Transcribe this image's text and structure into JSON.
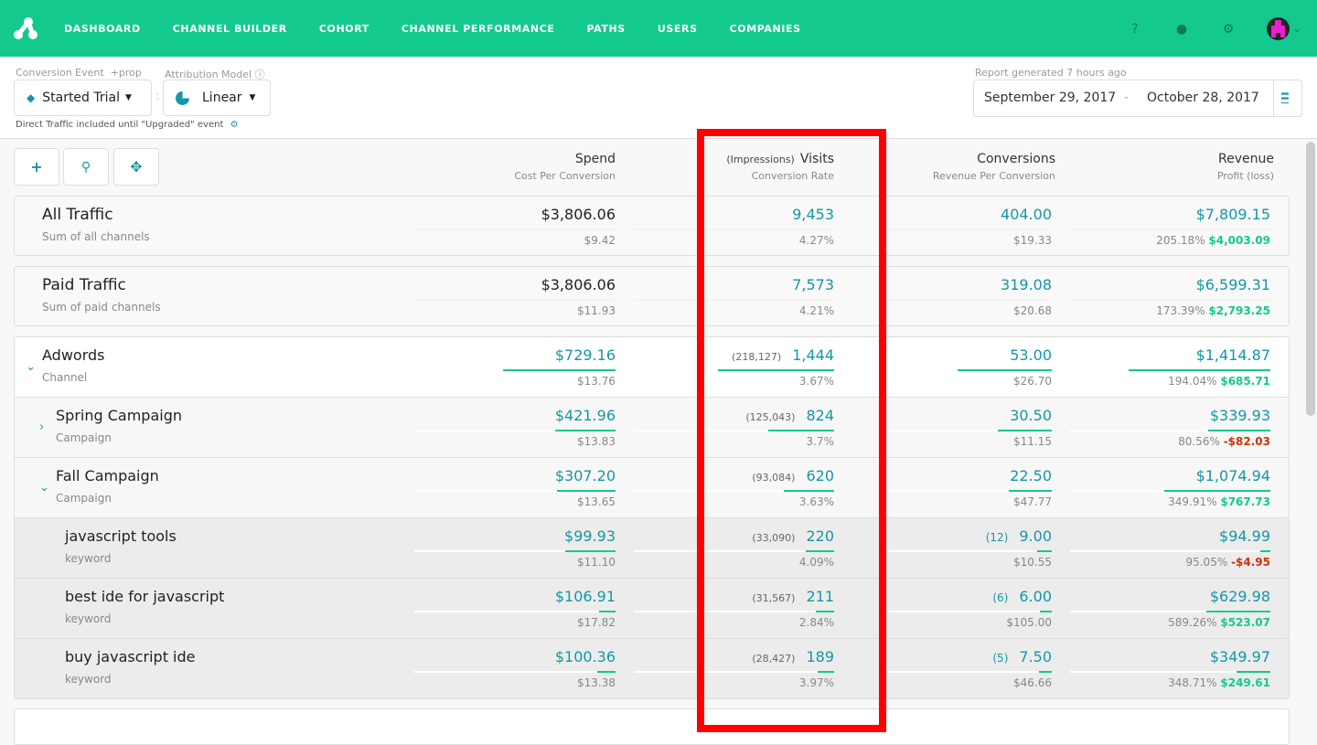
{
  "nav": {
    "items": [
      "DASHBOARD",
      "CHANNEL BUILDER",
      "COHORT",
      "CHANNEL PERFORMANCE",
      "PATHS",
      "USERS",
      "COMPANIES"
    ],
    "brand_color": "#14c98d",
    "icons": [
      "help-icon",
      "chat-icon",
      "gear-icon"
    ]
  },
  "filters": {
    "conversion_event_label": "Conversion Event",
    "prop_label": "+prop",
    "conversion_event": "Started Trial",
    "attribution_label": "Attribution Model",
    "attribution": "Linear",
    "separator": ":",
    "note": "Direct Traffic included until \"Upgraded\" event"
  },
  "report": {
    "generated": "Report generated 7 hours ago",
    "start": "September 29, 2017",
    "dash": "-",
    "end": "October 28, 2017"
  },
  "toolbar": {
    "add": "+",
    "search": "search",
    "move": "move"
  },
  "columns": [
    {
      "title": "Spend",
      "sub": "Cost Per Conversion"
    },
    {
      "prefix": "(Impressions)",
      "title": "Visits",
      "sub": "Conversion Rate"
    },
    {
      "title": "Conversions",
      "sub": "Revenue Per Conversion"
    },
    {
      "title": "Revenue",
      "sub": "Profit (loss)"
    }
  ],
  "summary": [
    {
      "name": "All Traffic",
      "sub": "Sum of all channels",
      "spend": "$3,806.06",
      "cpc": "$9.42",
      "visits": "9,453",
      "rate": "4.27%",
      "conv": "404.00",
      "rpc": "$19.33",
      "revenue": "$7,809.15",
      "roi": "205.18%",
      "profit": "$4,003.09",
      "profit_sign": "pos"
    },
    {
      "name": "Paid Traffic",
      "sub": "Sum of paid channels",
      "spend": "$3,806.06",
      "cpc": "$11.93",
      "visits": "7,573",
      "rate": "4.21%",
      "conv": "319.08",
      "rpc": "$20.68",
      "revenue": "$6,599.31",
      "roi": "173.39%",
      "profit": "$2,793.25",
      "profit_sign": "pos"
    }
  ],
  "rows": [
    {
      "level": 0,
      "expand": "down",
      "name": "Adwords",
      "sub": "Channel",
      "spend": "$729.16",
      "cpc": "$13.76",
      "impressions": "(218,127)",
      "visits": "1,444",
      "rate": "3.67%",
      "conv": "53.00",
      "rpc": "$26.70",
      "revenue": "$1,414.87",
      "roi": "194.04%",
      "profit": "$685.71",
      "profit_sign": "pos",
      "bars": [
        0.56,
        0.58,
        0.57,
        0.71
      ]
    },
    {
      "level": 1,
      "expand": "right",
      "name": "Spring Campaign",
      "sub": "Campaign",
      "spend": "$421.96",
      "cpc": "$13.83",
      "impressions": "(125,043)",
      "visits": "824",
      "rate": "3.7%",
      "conv": "30.50",
      "rpc": "$11.15",
      "revenue": "$339.93",
      "roi": "80.56%",
      "profit": "-$82.03",
      "profit_sign": "neg",
      "bars": [
        0.3,
        0.33,
        0.33,
        0.31
      ]
    },
    {
      "level": 1,
      "expand": "down",
      "name": "Fall Campaign",
      "sub": "Campaign",
      "spend": "$307.20",
      "cpc": "$13.65",
      "impressions": "(93,084)",
      "visits": "620",
      "rate": "3.63%",
      "conv": "22.50",
      "rpc": "$47.77",
      "revenue": "$1,074.94",
      "roi": "349.91%",
      "profit": "$767.73",
      "profit_sign": "pos",
      "bars": [
        0.29,
        0.25,
        0.26,
        0.53
      ]
    },
    {
      "level": 2,
      "name": "javascript tools",
      "sub": "keyword",
      "spend": "$99.93",
      "cpc": "$11.10",
      "impressions": "(33,090)",
      "visits": "220",
      "rate": "4.09%",
      "count": "(12)",
      "conv": "9.00",
      "rpc": "$10.55",
      "revenue": "$94.99",
      "roi": "95.05%",
      "profit": "-$4.95",
      "profit_sign": "neg",
      "bars": [
        0.25,
        0.14,
        0.09,
        0.05
      ]
    },
    {
      "level": 2,
      "name": "best ide for javascript",
      "sub": "keyword",
      "spend": "$106.91",
      "cpc": "$17.82",
      "impressions": "(31,567)",
      "visits": "211",
      "rate": "2.84%",
      "count": "(6)",
      "conv": "6.00",
      "rpc": "$105.00",
      "revenue": "$629.98",
      "roi": "589.26%",
      "profit": "$523.07",
      "profit_sign": "pos",
      "bars": [
        0.08,
        0.09,
        0.07,
        0.32
      ]
    },
    {
      "level": 2,
      "name": "buy javascript ide",
      "sub": "keyword",
      "spend": "$100.36",
      "cpc": "$13.38",
      "impressions": "(28,427)",
      "visits": "189",
      "rate": "3.97%",
      "count": "(5)",
      "conv": "7.50",
      "rpc": "$46.66",
      "revenue": "$349.97",
      "roi": "348.71%",
      "profit": "$249.61",
      "profit_sign": "pos",
      "bars": [
        0.09,
        0.08,
        0.08,
        0.17
      ]
    }
  ]
}
